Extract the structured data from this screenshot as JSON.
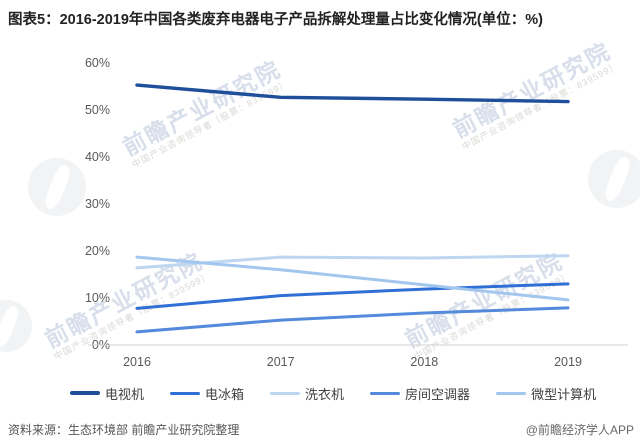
{
  "header": {
    "title": "图表5：2016-2019年中国各类废弃电器电子产品拆解处理量占比变化情况(单位：%)"
  },
  "chart_data": {
    "type": "line",
    "title": "2016-2019年中国各类废弃电器电子产品拆解处理量占比变化情况",
    "unit": "%",
    "x": [
      "2016",
      "2017",
      "2018",
      "2019"
    ],
    "series": [
      {
        "name": "电视机",
        "color": "#1F4E9B",
        "values": [
          55.3,
          52.7,
          52.3,
          51.8
        ]
      },
      {
        "name": "电冰箱",
        "color": "#2F6FD6",
        "values": [
          7.8,
          10.5,
          11.9,
          13.0
        ]
      },
      {
        "name": "洗衣机",
        "color": "#BDD7F0",
        "values": [
          16.4,
          18.7,
          18.5,
          19.0
        ]
      },
      {
        "name": "房间空调器",
        "color": "#5489DB",
        "values": [
          2.8,
          5.3,
          6.8,
          7.9
        ]
      },
      {
        "name": "微型计算机",
        "color": "#A3C6EE",
        "values": [
          18.7,
          16.0,
          12.8,
          9.6
        ]
      }
    ],
    "ylim": [
      0,
      60
    ],
    "ytick_step": 10,
    "ytick_suffix": "%",
    "grid": false,
    "legend_position": "bottom"
  },
  "watermark": {
    "text": "前瞻产业研究院",
    "subtext": "中国产业咨询领导者（股票：839599）"
  },
  "footer": {
    "source": "资料来源：生态环境部 前瞻产业研究院整理",
    "credit": "@前瞻经济学人APP"
  }
}
